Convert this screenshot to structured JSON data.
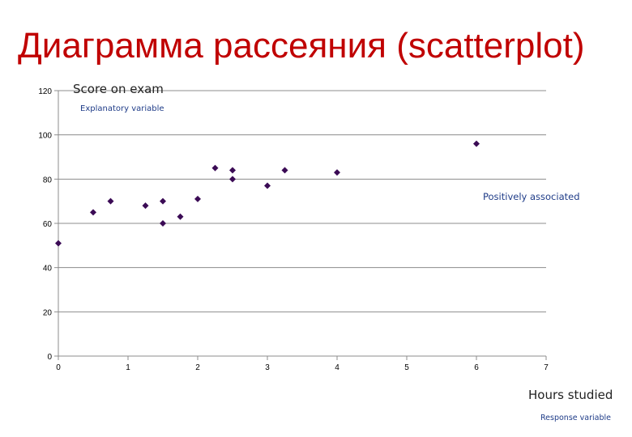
{
  "slide": {
    "title": "Диаграмма рассеяния (scatterplot)"
  },
  "chart_data": {
    "type": "scatter",
    "ylabel": "Score on exam",
    "ylabel_note": "Explanatory variable",
    "xlabel": "Hours studied",
    "xlabel_note": "Response variable",
    "annotation": "Positively associated",
    "xlim": [
      0,
      7
    ],
    "ylim": [
      0,
      120
    ],
    "xticks": [
      0,
      1,
      2,
      3,
      4,
      5,
      6,
      7
    ],
    "yticks": [
      0,
      20,
      40,
      60,
      80,
      100,
      120
    ],
    "grid": "horizontal",
    "marker": "diamond",
    "marker_color": "#3b0b55",
    "points": [
      {
        "x": 0,
        "y": 51
      },
      {
        "x": 0.5,
        "y": 65
      },
      {
        "x": 0.75,
        "y": 70
      },
      {
        "x": 1.25,
        "y": 68
      },
      {
        "x": 1.5,
        "y": 70
      },
      {
        "x": 1.5,
        "y": 60
      },
      {
        "x": 1.75,
        "y": 63
      },
      {
        "x": 2,
        "y": 71
      },
      {
        "x": 2.25,
        "y": 85
      },
      {
        "x": 2.5,
        "y": 84
      },
      {
        "x": 2.5,
        "y": 80
      },
      {
        "x": 3,
        "y": 77
      },
      {
        "x": 3.25,
        "y": 84
      },
      {
        "x": 4,
        "y": 83
      },
      {
        "x": 6,
        "y": 96
      }
    ]
  }
}
